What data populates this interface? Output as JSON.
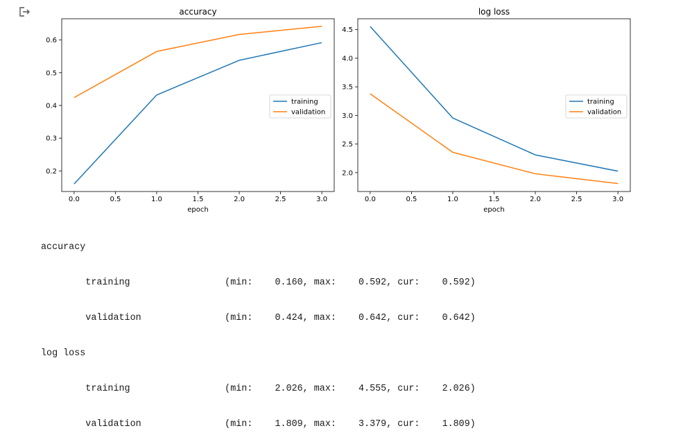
{
  "output_icon": "output-redirect-icon",
  "colors": {
    "training": "#1f77b4",
    "validation": "#ff7f0e",
    "axes": "#000000"
  },
  "chart_data": [
    {
      "type": "line",
      "title": "accuracy",
      "xlabel": "epoch",
      "ylabel": "",
      "x": [
        0,
        1,
        2,
        3
      ],
      "xlim": [
        -0.15,
        3.15
      ],
      "ylim": [
        0.137,
        0.665
      ],
      "xticks": [
        0.0,
        0.5,
        1.0,
        1.5,
        2.0,
        2.5,
        3.0
      ],
      "xtick_labels": [
        "0.0",
        "0.5",
        "1.0",
        "1.5",
        "2.0",
        "2.5",
        "3.0"
      ],
      "yticks": [
        0.2,
        0.3,
        0.4,
        0.5,
        0.6
      ],
      "ytick_labels": [
        "0.2",
        "0.3",
        "0.4",
        "0.5",
        "0.6"
      ],
      "grid": false,
      "legend": "center-right",
      "series": [
        {
          "name": "training",
          "values": [
            0.16,
            0.432,
            0.538,
            0.592
          ]
        },
        {
          "name": "validation",
          "values": [
            0.424,
            0.565,
            0.617,
            0.642
          ]
        }
      ]
    },
    {
      "type": "line",
      "title": "log loss",
      "xlabel": "epoch",
      "ylabel": "",
      "x": [
        0,
        1,
        2,
        3
      ],
      "xlim": [
        -0.15,
        3.15
      ],
      "ylim": [
        1.67,
        4.69
      ],
      "xticks": [
        0.0,
        0.5,
        1.0,
        1.5,
        2.0,
        2.5,
        3.0
      ],
      "xtick_labels": [
        "0.0",
        "0.5",
        "1.0",
        "1.5",
        "2.0",
        "2.5",
        "3.0"
      ],
      "yticks": [
        2.0,
        2.5,
        3.0,
        3.5,
        4.0,
        4.5
      ],
      "ytick_labels": [
        "2.0",
        "2.5",
        "3.0",
        "3.5",
        "4.0",
        "4.5"
      ],
      "grid": false,
      "legend": "center-right",
      "series": [
        {
          "name": "training",
          "values": [
            4.555,
            2.955,
            2.31,
            2.026
          ]
        },
        {
          "name": "validation",
          "values": [
            3.379,
            2.355,
            1.98,
            1.809
          ]
        }
      ]
    }
  ],
  "stats": [
    {
      "text": "accuracy"
    },
    {
      "text": "\ttraining           \t (min:    0.160, max:    0.592, cur:    0.592)"
    },
    {
      "text": "\tvalidation         \t (min:    0.424, max:    0.642, cur:    0.642)"
    },
    {
      "text": "log loss"
    },
    {
      "text": "\ttraining           \t (min:    2.026, max:    4.555, cur:    2.026)"
    },
    {
      "text": "\tvalidation         \t (min:    1.809, max:    3.379, cur:    1.809)"
    }
  ]
}
